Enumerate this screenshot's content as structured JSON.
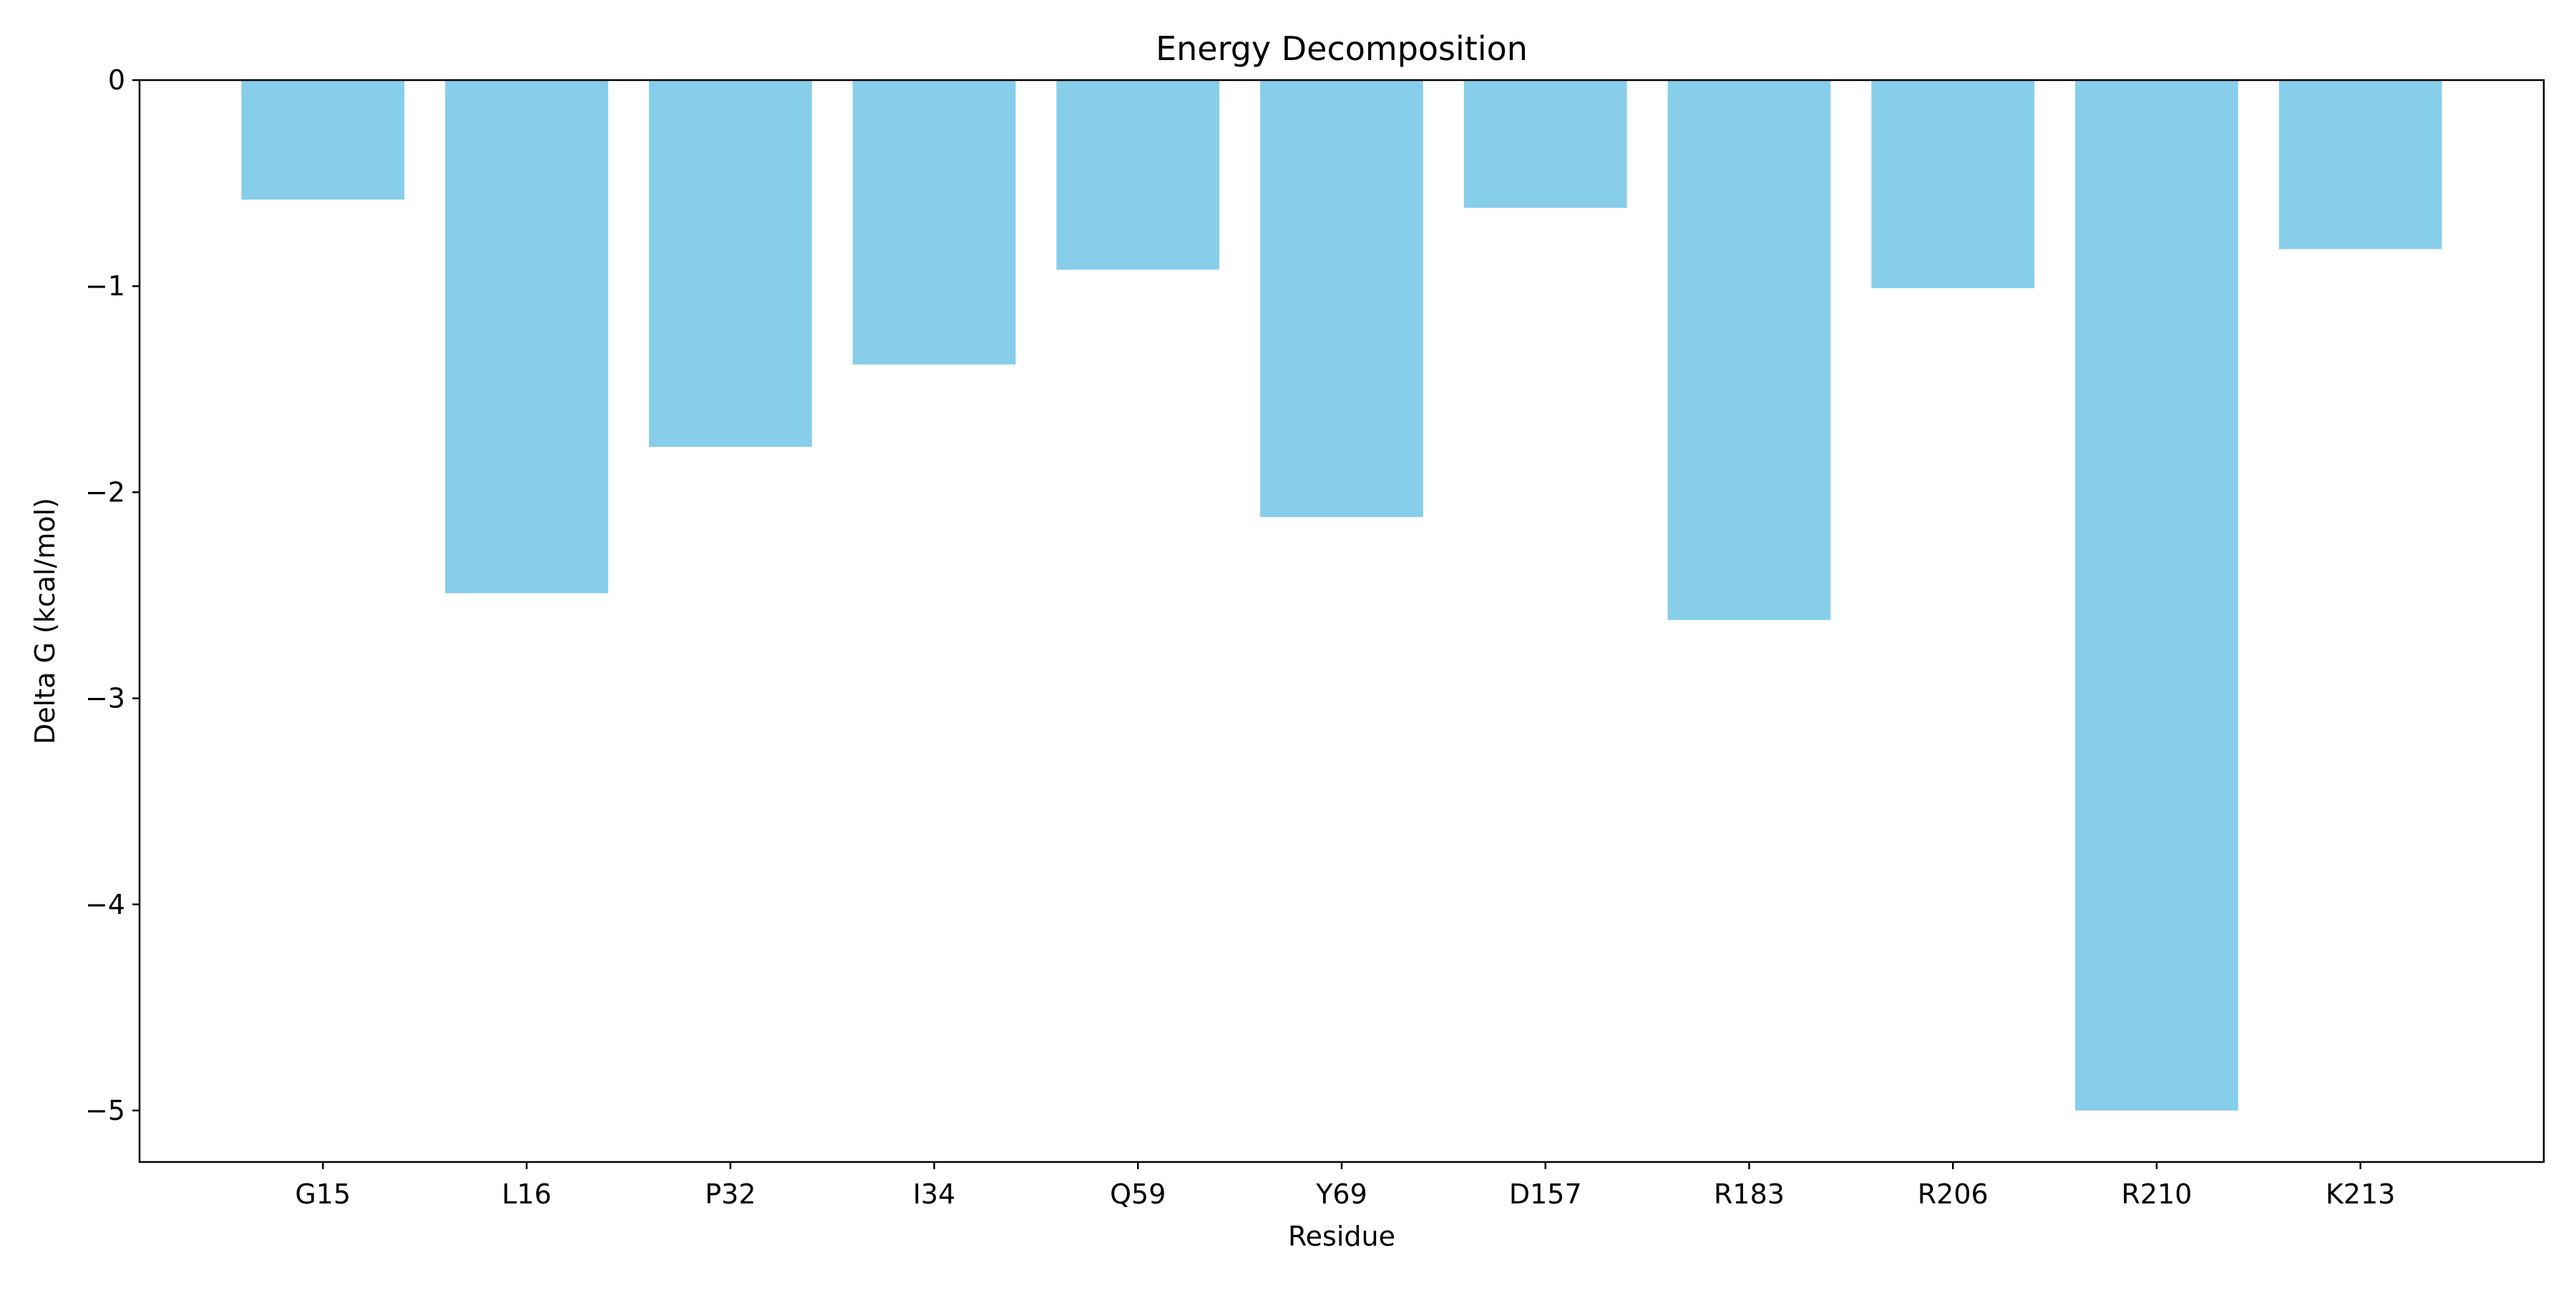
{
  "chart_data": {
    "type": "bar",
    "title": "Energy Decomposition",
    "xlabel": "Residue",
    "ylabel": "Delta G (kcal/mol)",
    "categories": [
      "G15",
      "L16",
      "P32",
      "I34",
      "Q59",
      "Y69",
      "D157",
      "R183",
      "R206",
      "R210",
      "K213"
    ],
    "values": [
      -0.58,
      -2.49,
      -1.78,
      -1.38,
      -0.92,
      -2.12,
      -0.62,
      -2.62,
      -1.01,
      -5.0,
      -0.82
    ],
    "ylim": [
      -5.25,
      0
    ],
    "yticks": [
      0,
      -1,
      -2,
      -3,
      -4,
      -5
    ],
    "ytick_labels": [
      "0",
      "−1",
      "−2",
      "−3",
      "−4",
      "−5"
    ],
    "bar_color": "#87ceeb",
    "grid": false,
    "legend": "none"
  }
}
